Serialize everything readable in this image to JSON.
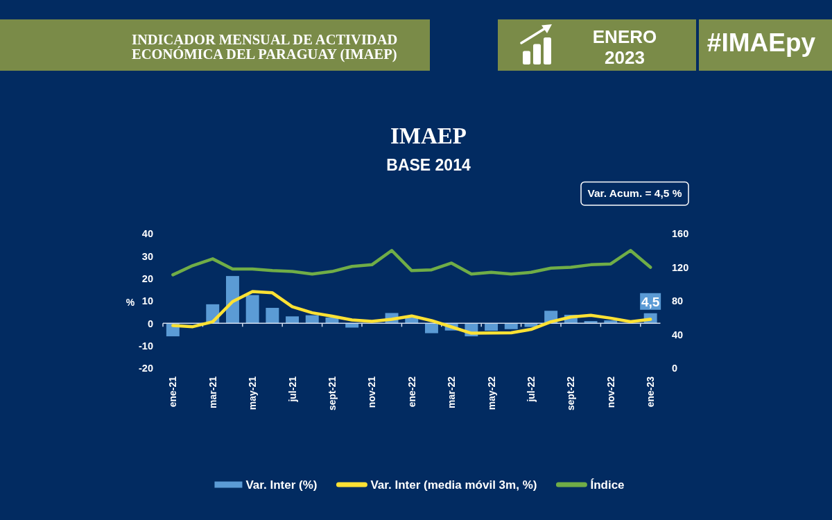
{
  "chart_data": {
    "type": "bar",
    "title": "IMAEP",
    "subtitle": "BASE 2014",
    "ylabel": "%",
    "annotations": [
      "Var. Acum. = 4,5 %",
      "INDICADOR MENSUAL DE ACTIVIDAD\nECONÓMICA DEL PARAGUAY (IMAEP)",
      "ENERO\n2023",
      "#IMAEpy"
    ],
    "categories": [
      "ene-21",
      null,
      "mar-21",
      null,
      "may-21",
      null,
      "jul-21",
      null,
      "sept-21",
      null,
      "nov-21",
      null,
      "ene-22",
      null,
      "mar-22",
      null,
      "may-22",
      null,
      "jul-22",
      null,
      "sept-22",
      null,
      "nov-22",
      null,
      "ene-23"
    ],
    "series": [
      {
        "name": "Var. Inter (%)",
        "color": "#5b9bd5",
        "values": [
          -5.8,
          null,
          8.5,
          21.1,
          12.6,
          6.9,
          3.1,
          3.6,
          2.6,
          -1.9,
          null,
          4.6,
          2.6,
          -4.4,
          -3.2,
          -5.8,
          -3.3,
          -2.6,
          -1.6,
          5.6,
          3.8,
          1.0,
          1.3,
          null,
          4.5
        ],
        "value_labels": [
          null,
          null,
          null,
          null,
          null,
          null,
          null,
          null,
          null,
          null,
          null,
          null,
          null,
          null,
          null,
          null,
          null,
          null,
          null,
          null,
          null,
          null,
          null,
          null,
          "4,5"
        ]
      },
      {
        "name": "Var. Inter (media móvil 3m, %)",
        "type": "line",
        "color": "#fde134",
        "values": [
          -1.0,
          -1.5,
          0.7,
          9.7,
          14.2,
          13.6,
          7.4,
          4.7,
          3.2,
          1.5,
          0.9,
          1.8,
          3.3,
          1.2,
          -1.6,
          -4.4,
          -4.3,
          -4.2,
          -2.7,
          0.7,
          2.8,
          3.6,
          2.3,
          0.7,
          1.8
        ]
      },
      {
        "name": "Índice",
        "type": "line",
        "axis": "y2",
        "color": "#70ad47",
        "values": [
          111,
          122,
          130,
          118,
          118,
          116,
          115,
          112,
          115,
          121,
          123,
          140,
          116,
          117,
          125,
          112,
          114,
          112,
          114,
          119,
          120,
          123,
          124,
          140,
          120
        ]
      }
    ],
    "ylim": [
      -20,
      40
    ],
    "yticks": [
      -20,
      -10,
      0,
      10,
      20,
      30,
      40
    ],
    "y2lim": [
      0,
      160
    ],
    "y2ticks": [
      0,
      40,
      80,
      120,
      160
    ],
    "legend": "bottom"
  }
}
